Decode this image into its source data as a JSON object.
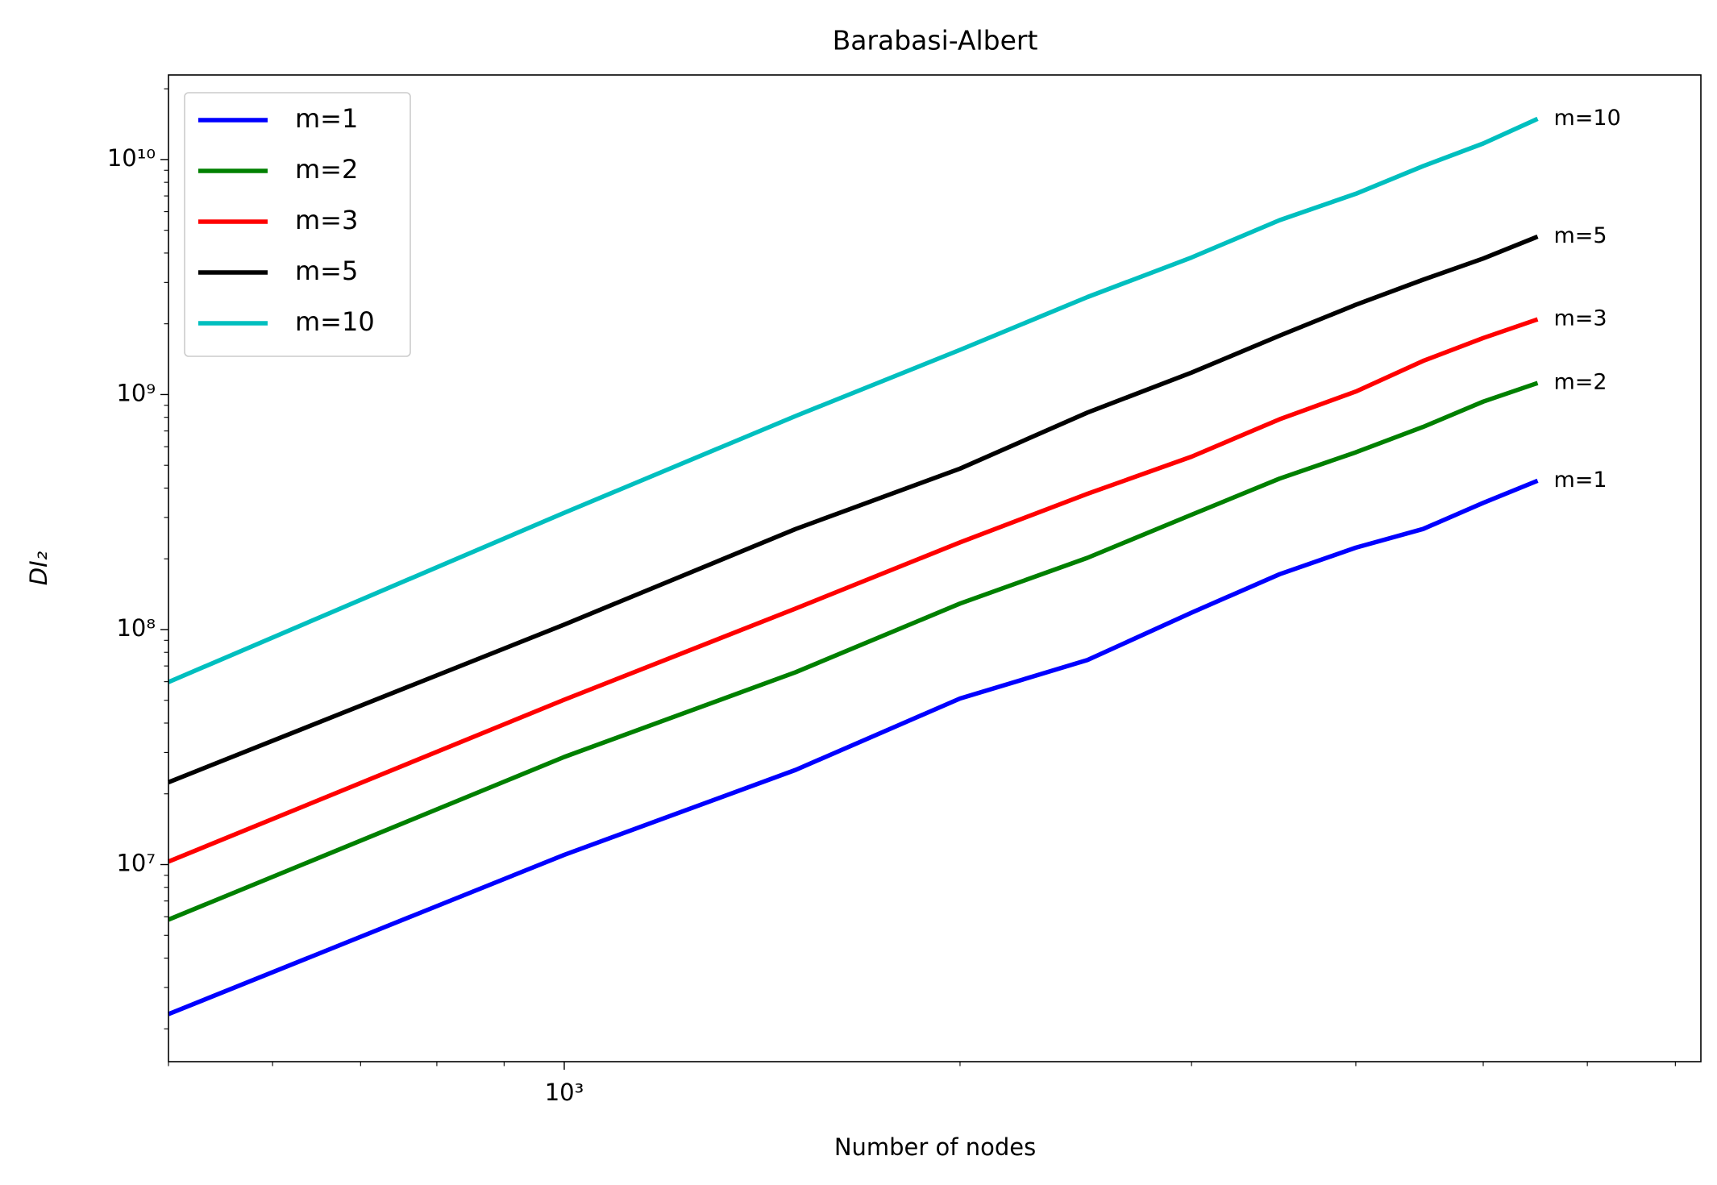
{
  "chart_data": {
    "type": "line",
    "title": "Barabasi-Albert",
    "xlabel": "Number of nodes",
    "ylabel": "DI₂",
    "x": [
      500,
      1000,
      1500,
      2000,
      2500,
      3000,
      3500,
      4000,
      4500,
      5000,
      5500
    ],
    "series": [
      {
        "name": "m=1",
        "color": "#0000ff",
        "values": [
          2310000,
          11000000,
          25300000,
          50900000,
          74200000,
          118000000,
          172000000,
          223000000,
          268000000,
          346000000,
          430000000
        ]
      },
      {
        "name": "m=2",
        "color": "#008000",
        "values": [
          5830000,
          28700000,
          65900000,
          129000000,
          202000000,
          308000000,
          439000000,
          568000000,
          728000000,
          933000000,
          1120000000
        ]
      },
      {
        "name": "m=3",
        "color": "#ff0000",
        "values": [
          10300000,
          50300000,
          123000000,
          235000000,
          378000000,
          544000000,
          785000000,
          1030000000,
          1390000000,
          1740000000,
          2090000000
        ]
      },
      {
        "name": "m=5",
        "color": "#000000",
        "values": [
          22400000,
          105000000,
          268000000,
          484000000,
          838000000,
          1240000000,
          1780000000,
          2410000000,
          3080000000,
          3790000000,
          4700000000
        ]
      },
      {
        "name": "m=10",
        "color": "#00bfbf",
        "values": [
          59800000,
          314000000,
          811000000,
          1550000000,
          2600000000,
          3830000000,
          5520000000,
          7150000000,
          9370000000,
          11700000000,
          14900000000
        ]
      }
    ],
    "xscale": "log",
    "yscale": "log",
    "xlim": [
      500,
      7320
    ],
    "ylim": [
      1450000,
      22900000000
    ],
    "xticks": [
      {
        "value": 1000,
        "label": "10³"
      }
    ],
    "xminor_ticks": [
      500,
      600,
      700,
      800,
      900,
      2000,
      3000,
      4000,
      5000,
      6000,
      7000
    ],
    "yticks": [
      {
        "value": 10000000,
        "label": "10⁷"
      },
      {
        "value": 100000000,
        "label": "10⁸"
      },
      {
        "value": 1000000000,
        "label": "10⁹"
      },
      {
        "value": 10000000000,
        "label": "10¹⁰"
      }
    ],
    "yminor_ticks": [
      2000000,
      3000000,
      4000000,
      5000000,
      6000000,
      7000000,
      8000000,
      9000000,
      20000000,
      30000000,
      40000000,
      50000000,
      60000000,
      70000000,
      80000000,
      90000000,
      200000000,
      300000000,
      400000000,
      500000000,
      600000000,
      700000000,
      800000000,
      900000000,
      2000000000,
      3000000000,
      4000000000,
      5000000000,
      6000000000,
      7000000000,
      8000000000,
      9000000000,
      20000000000
    ],
    "legend": "upper left",
    "end_labels": true,
    "grid": false
  }
}
